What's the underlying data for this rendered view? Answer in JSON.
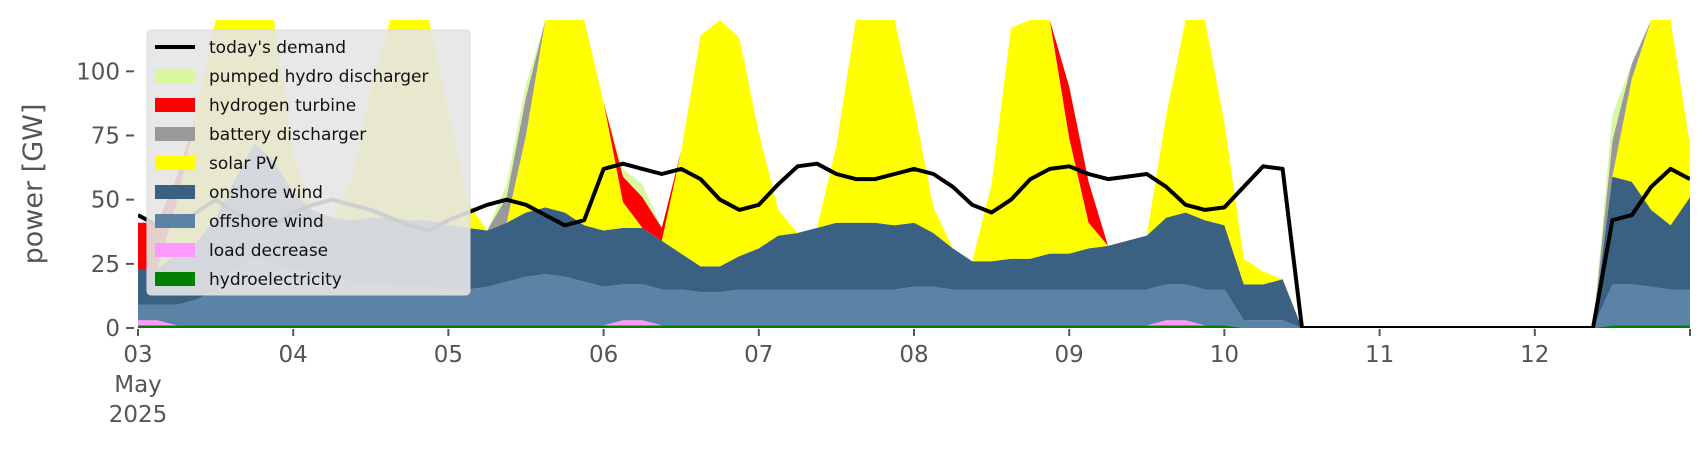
{
  "chart_data": {
    "type": "area",
    "ylabel": "power [GW]",
    "ylim": [
      0,
      120
    ],
    "xlim": [
      "2025-05-03T00:00",
      "2025-05-13T00:00"
    ],
    "y_ticks": [
      0,
      25,
      50,
      75,
      100
    ],
    "x_tick_labels": [
      {
        "date": "2025-05-03",
        "lines": [
          "03",
          "May",
          "2025"
        ]
      },
      {
        "date": "2025-05-04",
        "lines": [
          "04"
        ]
      },
      {
        "date": "2025-05-05",
        "lines": [
          "05"
        ]
      },
      {
        "date": "2025-05-06",
        "lines": [
          "06"
        ]
      },
      {
        "date": "2025-05-07",
        "lines": [
          "07"
        ]
      },
      {
        "date": "2025-05-08",
        "lines": [
          "08"
        ]
      },
      {
        "date": "2025-05-09",
        "lines": [
          "09"
        ]
      },
      {
        "date": "2025-05-10",
        "lines": [
          "10"
        ]
      },
      {
        "date": "2025-05-11",
        "lines": [
          "11"
        ]
      },
      {
        "date": "2025-05-12",
        "lines": [
          "12"
        ]
      }
    ],
    "grid": false,
    "legend_position": "top-left",
    "legend": [
      {
        "label": "today's demand",
        "kind": "line",
        "color": "#000000"
      },
      {
        "label": "pumped hydro discharger",
        "kind": "patch",
        "color": "#d9f7a1"
      },
      {
        "label": "hydrogen turbine",
        "kind": "patch",
        "color": "#ff0000"
      },
      {
        "label": "battery discharger",
        "kind": "patch",
        "color": "#999999"
      },
      {
        "label": "solar PV",
        "kind": "patch",
        "color": "#ffff00"
      },
      {
        "label": "onshore wind",
        "kind": "patch",
        "color": "#3b6182"
      },
      {
        "label": "offshore wind",
        "kind": "patch",
        "color": "#5b83a5"
      },
      {
        "label": "load decrease",
        "kind": "patch",
        "color": "#ff99ff"
      },
      {
        "label": "hydroelectricity",
        "kind": "patch",
        "color": "#008000"
      }
    ],
    "x_hours": [
      0,
      3,
      6,
      9,
      12,
      15,
      18,
      21,
      24,
      27,
      30,
      33,
      36,
      39,
      42,
      45,
      48,
      51,
      54,
      57,
      60,
      63,
      66,
      69,
      72,
      75,
      78,
      81,
      84,
      87,
      90,
      93,
      96,
      99,
      102,
      105,
      108,
      111,
      114,
      117,
      120,
      123,
      126,
      129,
      132,
      135,
      138,
      141,
      144,
      147,
      150,
      153,
      156,
      159,
      162,
      165,
      168,
      171,
      174,
      177,
      180,
      183,
      186,
      189,
      192,
      195,
      198,
      201,
      204,
      207,
      210,
      213,
      216,
      219,
      222,
      225,
      228,
      231,
      234,
      237,
      240
    ],
    "stack_order": [
      "hydroelectricity",
      "load decrease",
      "offshore wind",
      "onshore wind",
      "solar PV",
      "battery discharger",
      "hydrogen turbine",
      "pumped hydro discharger"
    ],
    "series": [
      {
        "name": "hydroelectricity",
        "color": "#008000",
        "values": [
          1,
          1,
          1,
          1,
          1,
          1,
          1,
          1,
          1,
          1,
          1,
          1,
          1,
          1,
          1,
          1,
          1,
          1,
          1,
          1,
          1,
          1,
          1,
          1,
          1,
          1,
          1,
          1,
          1,
          1,
          1,
          1,
          1,
          1,
          1,
          1,
          1,
          1,
          1,
          1,
          1,
          1,
          1,
          1,
          1,
          1,
          1,
          1,
          1,
          1,
          1,
          1,
          1,
          1,
          1,
          1,
          1,
          0,
          0,
          0,
          0,
          0,
          0,
          0,
          0,
          0,
          0,
          0,
          0,
          0,
          0,
          0,
          0,
          0,
          0,
          0,
          1,
          1,
          1,
          1,
          1
        ]
      },
      {
        "name": "load decrease",
        "color": "#ff99ff",
        "values": [
          2,
          2,
          0,
          0,
          0,
          0,
          0,
          0,
          0,
          0,
          0,
          0,
          0,
          0,
          0,
          0,
          0,
          0,
          0,
          0,
          0,
          0,
          0,
          0,
          0,
          2,
          2,
          0,
          0,
          0,
          0,
          0,
          0,
          0,
          0,
          0,
          0,
          0,
          0,
          0,
          0,
          0,
          0,
          0,
          0,
          0,
          0,
          0,
          0,
          0,
          0,
          0,
          0,
          2,
          2,
          0,
          0,
          0,
          0,
          0,
          0,
          0,
          0,
          0,
          0,
          0,
          0,
          0,
          0,
          0,
          0,
          0,
          0,
          0,
          0,
          0,
          0,
          0,
          0,
          0,
          0
        ]
      },
      {
        "name": "offshore wind",
        "color": "#5b83a5",
        "values": [
          6,
          6,
          8,
          10,
          14,
          22,
          26,
          24,
          22,
          20,
          18,
          17,
          16,
          16,
          15,
          15,
          14,
          14,
          15,
          17,
          19,
          20,
          19,
          17,
          15,
          14,
          14,
          14,
          14,
          13,
          13,
          14,
          14,
          14,
          14,
          14,
          14,
          14,
          14,
          14,
          15,
          15,
          14,
          14,
          14,
          14,
          14,
          14,
          14,
          14,
          14,
          14,
          14,
          14,
          14,
          14,
          14,
          3,
          3,
          3,
          0,
          0,
          0,
          0,
          0,
          0,
          0,
          0,
          0,
          0,
          0,
          0,
          0,
          0,
          0,
          0,
          16,
          16,
          15,
          14,
          14
        ]
      },
      {
        "name": "onshore wind",
        "color": "#3b6182",
        "values": [
          14,
          14,
          20,
          22,
          28,
          35,
          45,
          40,
          30,
          25,
          24,
          24,
          26,
          26,
          26,
          26,
          25,
          24,
          22,
          23,
          25,
          26,
          25,
          22,
          22,
          22,
          22,
          19,
          14,
          10,
          10,
          13,
          16,
          21,
          22,
          24,
          26,
          26,
          26,
          25,
          25,
          21,
          16,
          11,
          11,
          12,
          12,
          14,
          14,
          16,
          17,
          19,
          21,
          26,
          28,
          27,
          25,
          14,
          14,
          16,
          0,
          0,
          0,
          0,
          0,
          0,
          0,
          0,
          0,
          0,
          0,
          0,
          0,
          0,
          0,
          0,
          42,
          40,
          30,
          25,
          36
        ]
      },
      {
        "name": "solar PV",
        "color": "#ffff00",
        "values": [
          0,
          0,
          20,
          50,
          95,
          120,
          100,
          60,
          15,
          0,
          0,
          15,
          50,
          95,
          110,
          90,
          45,
          10,
          0,
          0,
          30,
          90,
          130,
          110,
          50,
          10,
          0,
          0,
          40,
          90,
          105,
          85,
          45,
          10,
          0,
          0,
          30,
          85,
          100,
          95,
          45,
          10,
          0,
          0,
          30,
          90,
          95,
          95,
          45,
          10,
          0,
          0,
          0,
          40,
          110,
          90,
          40,
          10,
          5,
          0,
          0,
          0,
          0,
          0,
          0,
          0,
          0,
          0,
          0,
          0,
          0,
          0,
          0,
          0,
          0,
          0,
          0,
          40,
          110,
          90,
          20
        ]
      },
      {
        "name": "battery discharger",
        "color": "#999999",
        "values": [
          0,
          0,
          0,
          0,
          0,
          0,
          0,
          0,
          0,
          0,
          0,
          0,
          0,
          0,
          0,
          0,
          0,
          0,
          0,
          10,
          15,
          5,
          0,
          0,
          0,
          0,
          0,
          0,
          0,
          0,
          0,
          0,
          0,
          0,
          0,
          0,
          0,
          8,
          15,
          5,
          0,
          0,
          0,
          0,
          0,
          0,
          0,
          0,
          0,
          0,
          0,
          0,
          0,
          0,
          0,
          0,
          0,
          0,
          0,
          0,
          0,
          0,
          0,
          0,
          0,
          0,
          0,
          0,
          0,
          0,
          0,
          0,
          0,
          0,
          0,
          0,
          14,
          6,
          0,
          0,
          0
        ]
      },
      {
        "name": "hydrogen turbine",
        "color": "#ff0000",
        "values": [
          18,
          18,
          10,
          0,
          0,
          0,
          0,
          0,
          0,
          0,
          0,
          0,
          0,
          0,
          0,
          0,
          0,
          0,
          0,
          0,
          0,
          0,
          0,
          0,
          0,
          10,
          12,
          5,
          0,
          0,
          0,
          0,
          0,
          0,
          0,
          0,
          0,
          0,
          0,
          0,
          0,
          0,
          0,
          0,
          0,
          0,
          0,
          15,
          20,
          16,
          0,
          0,
          0,
          0,
          0,
          0,
          0,
          0,
          0,
          0,
          0,
          0,
          0,
          0,
          0,
          0,
          0,
          0,
          0,
          0,
          0,
          0,
          0,
          0,
          0,
          0,
          0,
          0,
          0,
          0,
          0
        ]
      },
      {
        "name": "pumped hydro discharger",
        "color": "#d9f7a1",
        "values": [
          0,
          0,
          0,
          0,
          0,
          0,
          0,
          0,
          0,
          0,
          0,
          0,
          0,
          0,
          0,
          0,
          0,
          0,
          0,
          5,
          5,
          0,
          0,
          0,
          0,
          3,
          5,
          0,
          0,
          0,
          0,
          0,
          0,
          0,
          0,
          0,
          0,
          0,
          0,
          0,
          0,
          0,
          0,
          0,
          0,
          0,
          0,
          0,
          0,
          0,
          0,
          0,
          0,
          0,
          0,
          0,
          0,
          0,
          0,
          0,
          0,
          0,
          0,
          0,
          0,
          0,
          0,
          0,
          0,
          0,
          0,
          0,
          0,
          0,
          0,
          0,
          10,
          0,
          0,
          0,
          0
        ]
      }
    ],
    "demand": {
      "name": "today's demand",
      "color": "#000000",
      "values": [
        44,
        40,
        40,
        45,
        50,
        45,
        42,
        40,
        45,
        48,
        50,
        48,
        46,
        43,
        40,
        38,
        42,
        45,
        48,
        50,
        48,
        44,
        40,
        42,
        62,
        64,
        62,
        60,
        62,
        58,
        50,
        46,
        48,
        56,
        63,
        64,
        60,
        58,
        58,
        60,
        62,
        60,
        55,
        48,
        45,
        50,
        58,
        62,
        63,
        60,
        58,
        59,
        60,
        55,
        48,
        46,
        47,
        55,
        63,
        62,
        0,
        0,
        0,
        0,
        0,
        0,
        0,
        0,
        0,
        0,
        0,
        0,
        0,
        0,
        0,
        0,
        42,
        44,
        55,
        62,
        58
      ]
    }
  }
}
